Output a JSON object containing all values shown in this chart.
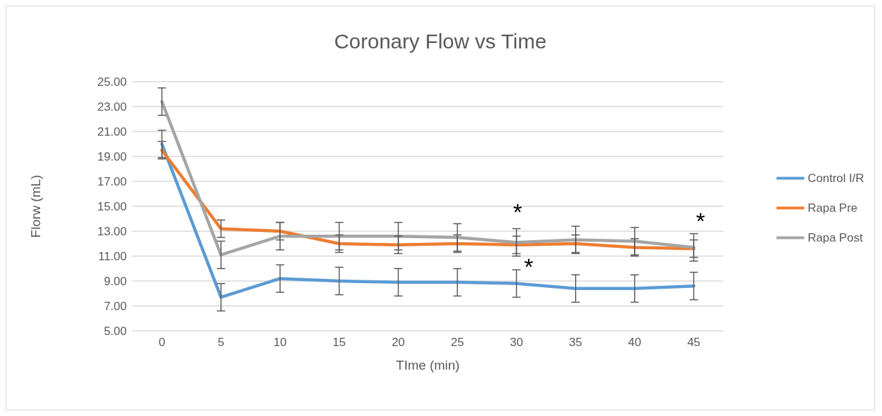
{
  "chart_data": {
    "type": "line",
    "title": "Coronary Flow vs Time",
    "xlabel": "TIme (min)",
    "ylabel": "Florw (mL)",
    "categories": [
      "0",
      "5",
      "10",
      "15",
      "20",
      "25",
      "30",
      "35",
      "40",
      "45"
    ],
    "series": [
      {
        "name": "Control I/R",
        "color": "#5b9bd5",
        "values": [
          20.0,
          7.7,
          9.2,
          9.0,
          8.9,
          8.9,
          8.8,
          8.4,
          8.4,
          8.6
        ],
        "errors": [
          1.1,
          1.1,
          1.1,
          1.1,
          1.1,
          1.1,
          1.1,
          1.1,
          1.1,
          1.1
        ]
      },
      {
        "name": "Rapa Pre",
        "color": "#ed7d31",
        "values": [
          19.5,
          13.2,
          13.0,
          12.0,
          11.9,
          12.0,
          11.9,
          12.0,
          11.7,
          11.6
        ],
        "errors": [
          0.7,
          0.7,
          0.7,
          0.7,
          0.7,
          0.7,
          0.7,
          0.7,
          0.7,
          0.7
        ]
      },
      {
        "name": "Rapa Post",
        "color": "#a5a5a5",
        "values": [
          23.4,
          11.1,
          12.6,
          12.6,
          12.6,
          12.5,
          12.1,
          12.3,
          12.2,
          11.7
        ],
        "errors": [
          1.1,
          1.1,
          1.1,
          1.1,
          1.1,
          1.1,
          1.1,
          1.1,
          1.1,
          1.1
        ]
      }
    ],
    "ylim": [
      5,
      25
    ],
    "yticks": [
      {
        "value": 5,
        "label": "5.00"
      },
      {
        "value": 7,
        "label": "7.00"
      },
      {
        "value": 9,
        "label": "9.00"
      },
      {
        "value": 11,
        "label": "11.00"
      },
      {
        "value": 13,
        "label": "13.00"
      },
      {
        "value": 15,
        "label": "15.00"
      },
      {
        "value": 17,
        "label": "17.00"
      },
      {
        "value": 19,
        "label": "19.00"
      },
      {
        "value": 21,
        "label": "21.00"
      },
      {
        "value": 23,
        "label": "23.00"
      },
      {
        "value": 25,
        "label": "25.00"
      }
    ],
    "annotations": [
      "*",
      "*",
      "*"
    ],
    "grid": "y",
    "legend": "right",
    "marker": "none",
    "line_style": "solid"
  }
}
